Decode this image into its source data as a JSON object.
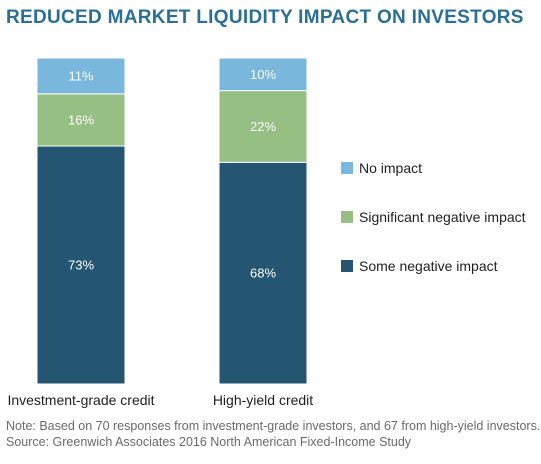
{
  "title": "REDUCED MARKET LIQUIDITY IMPACT ON INVESTORS",
  "colors": {
    "title": "#2a6f97",
    "no_impact": "#79b7dd",
    "significant_negative": "#96bf84",
    "some_negative": "#245672",
    "bar_text": "#ffffff"
  },
  "chart_data": {
    "type": "bar",
    "stacked": true,
    "title": "REDUCED MARKET LIQUIDITY IMPACT ON INVESTORS",
    "categories": [
      "Investment-grade credit",
      "High-yield credit"
    ],
    "series": [
      {
        "name": "Some negative impact",
        "values": [
          73,
          68
        ],
        "labels": [
          "73%",
          "68%"
        ],
        "color": "#245672"
      },
      {
        "name": "Significant negative impact",
        "values": [
          16,
          22
        ],
        "labels": [
          "16%",
          "22%"
        ],
        "color": "#96bf84"
      },
      {
        "name": "No impact",
        "values": [
          11,
          10
        ],
        "labels": [
          "11%",
          "10%"
        ],
        "color": "#79b7dd"
      }
    ],
    "legend": [
      {
        "name": "No impact",
        "color": "#79b7dd"
      },
      {
        "name": "Significant negative impact",
        "color": "#96bf84"
      },
      {
        "name": "Some negative impact",
        "color": "#245672"
      }
    ],
    "legend_position": "right",
    "ylim": [
      0,
      100
    ],
    "grid": false
  },
  "notes": {
    "note": "Note: Based on 70 responses from investment-grade investors, and 67 from high-yield investors.",
    "source": "Source: Greenwich Associates 2016 North American Fixed-Income Study"
  }
}
